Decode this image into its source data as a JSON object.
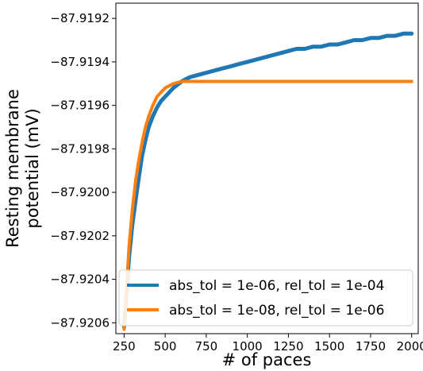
{
  "chart_data": {
    "type": "line",
    "xlabel": "# of paces",
    "ylabel_lines": [
      "Resting membrane",
      "potential (mV)"
    ],
    "xlim": [
      200,
      2040
    ],
    "ylim": [
      -87.92065,
      -87.91913
    ],
    "xticks": [
      250,
      500,
      750,
      1000,
      1250,
      1500,
      1750,
      2000
    ],
    "xtick_labels": [
      "250",
      "500",
      "750",
      "1000",
      "1250",
      "1500",
      "1750",
      "2000"
    ],
    "yticks": [
      -87.9192,
      -87.9194,
      -87.9196,
      -87.9198,
      -87.92,
      -87.9202,
      -87.9204,
      -87.9206
    ],
    "ytick_labels": [
      "−87.9192",
      "−87.9194",
      "−87.9196",
      "−87.9198",
      "−87.9200",
      "−87.9202",
      "−87.9204",
      "−87.9206"
    ],
    "legend_position": "lower-right",
    "series": [
      {
        "name": "abs_tol = 1e-06, rel_tol = 1e-04",
        "color": "#1f77b4",
        "x": [
          250,
          265,
          280,
          300,
          320,
          340,
          360,
          380,
          400,
          425,
          450,
          475,
          500,
          550,
          600,
          650,
          700,
          750,
          800,
          850,
          900,
          950,
          1000,
          1050,
          1100,
          1150,
          1200,
          1250,
          1300,
          1350,
          1400,
          1450,
          1500,
          1550,
          1600,
          1650,
          1700,
          1750,
          1800,
          1850,
          1900,
          1950,
          2000
        ],
        "y": [
          -87.92062,
          -87.92046,
          -87.9203,
          -87.92015,
          -87.92004,
          -87.91993,
          -87.91983,
          -87.91976,
          -87.9197,
          -87.91965,
          -87.91961,
          -87.91958,
          -87.91956,
          -87.91952,
          -87.91949,
          -87.91947,
          -87.91946,
          -87.91945,
          -87.91944,
          -87.91943,
          -87.91942,
          -87.91941,
          -87.9194,
          -87.91939,
          -87.91938,
          -87.91937,
          -87.91936,
          -87.91935,
          -87.91934,
          -87.91934,
          -87.91933,
          -87.91933,
          -87.91932,
          -87.91932,
          -87.91931,
          -87.9193,
          -87.9193,
          -87.91929,
          -87.91929,
          -87.91928,
          -87.91928,
          -87.91927,
          -87.91927
        ]
      },
      {
        "name": "abs_tol = 1e-08, rel_tol = 1e-06",
        "color": "#ff7f0e",
        "x": [
          250,
          265,
          280,
          300,
          320,
          340,
          360,
          380,
          400,
          425,
          450,
          475,
          500,
          550,
          600,
          650,
          700,
          750,
          800,
          900,
          1000,
          1200,
          1400,
          1600,
          1800,
          2000
        ],
        "y": [
          -87.92063,
          -87.92044,
          -87.92025,
          -87.92008,
          -87.91995,
          -87.91985,
          -87.91977,
          -87.9197,
          -87.91965,
          -87.9196,
          -87.91956,
          -87.91954,
          -87.91952,
          -87.9195,
          -87.91949,
          -87.91949,
          -87.91949,
          -87.91949,
          -87.91949,
          -87.91949,
          -87.91949,
          -87.91949,
          -87.91949,
          -87.91949,
          -87.91949,
          -87.91949
        ]
      }
    ]
  }
}
